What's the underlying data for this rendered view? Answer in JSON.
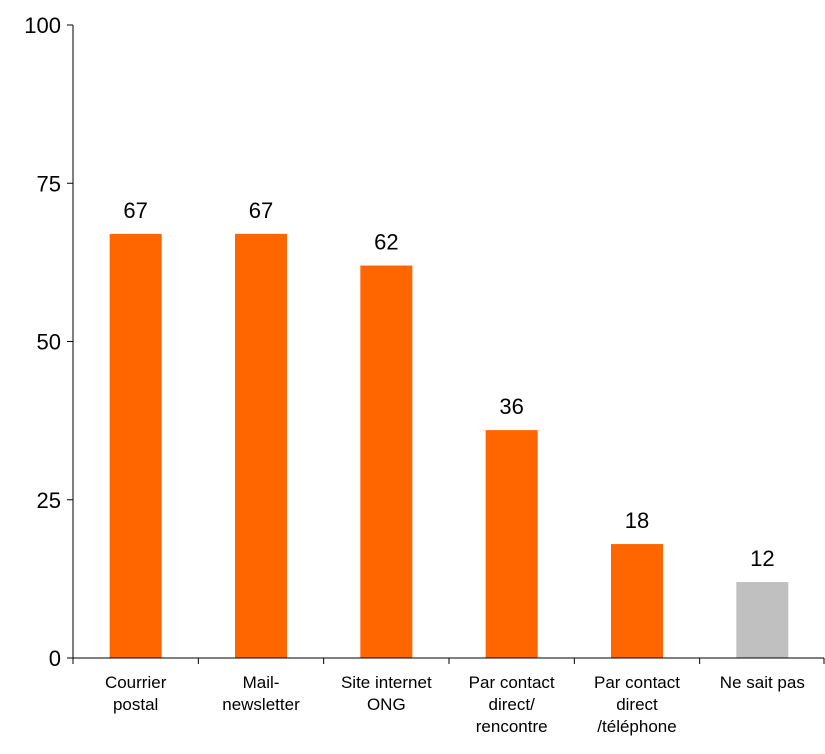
{
  "chart_data": {
    "type": "bar",
    "categories": [
      [
        "Courrier",
        "postal"
      ],
      [
        "Mail-",
        "newsletter"
      ],
      [
        "Site internet",
        "ONG"
      ],
      [
        "Par contact",
        "direct/",
        "rencontre"
      ],
      [
        "Par contact",
        "direct",
        "/téléphone"
      ],
      [
        "Ne sait pas"
      ]
    ],
    "values": [
      67,
      67,
      62,
      36,
      18,
      12
    ],
    "bar_colors": [
      "#ff6600",
      "#ff6600",
      "#ff6600",
      "#ff6600",
      "#ff6600",
      "#c0c0c0"
    ],
    "ylim": [
      0,
      100
    ],
    "yticks": [
      0,
      25,
      50,
      75,
      100
    ],
    "ytick_labels": [
      "0",
      "25",
      "50",
      "75",
      "100"
    ],
    "data_labels": [
      "67",
      "67",
      "62",
      "36",
      "18",
      "12"
    ],
    "grid": false,
    "title": "",
    "xlabel": "",
    "ylabel": ""
  }
}
